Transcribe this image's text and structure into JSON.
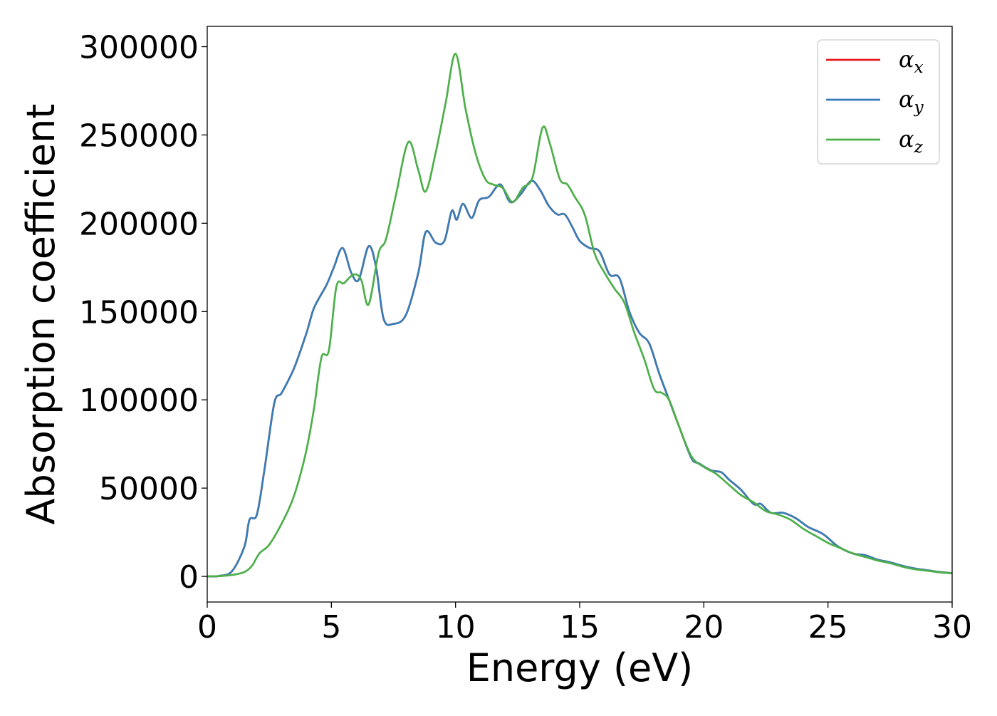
{
  "chart_data": {
    "type": "line",
    "xlabel": "Energy (eV)",
    "ylabel": "Absorption coefficient",
    "xlim": [
      0,
      30
    ],
    "ylim": [
      -14500,
      311500
    ],
    "x_ticks": [
      0,
      5,
      10,
      15,
      20,
      25,
      30
    ],
    "y_ticks": [
      0,
      50000,
      100000,
      150000,
      200000,
      250000,
      300000
    ],
    "x_tick_labels": [
      "0",
      "5",
      "10",
      "15",
      "20",
      "25",
      "30"
    ],
    "y_tick_labels": [
      "0",
      "50000",
      "100000",
      "150000",
      "200000",
      "250000",
      "300000"
    ],
    "grid": false,
    "legend_position": "top-right",
    "series": [
      {
        "name": "αx",
        "symbol": "α",
        "subscript": "x",
        "color": "#e41a1c",
        "x": [
          0,
          0.5,
          1.0,
          1.5,
          1.7,
          2.0,
          2.3,
          2.7,
          3.0,
          3.5,
          4.0,
          4.3,
          4.8,
          5.1,
          5.45,
          5.8,
          6.1,
          6.5,
          6.8,
          7.1,
          7.5,
          8.0,
          8.5,
          8.8,
          9.2,
          9.55,
          9.85,
          10.05,
          10.3,
          10.65,
          10.95,
          11.35,
          11.8,
          12.2,
          12.6,
          13.05,
          13.4,
          13.75,
          14.1,
          14.4,
          14.7,
          15.0,
          15.4,
          15.8,
          16.2,
          16.6,
          17.0,
          17.4,
          17.8,
          18.2,
          18.6,
          19.0,
          19.5,
          19.8,
          20.3,
          20.7,
          21.0,
          21.5,
          22.0,
          22.3,
          22.7,
          23.2,
          23.7,
          24.2,
          24.8,
          25.4,
          26.0,
          26.5,
          27.0,
          27.5,
          28.0,
          28.5,
          29.0,
          29.5,
          30.0
        ],
        "y": [
          0,
          300,
          3000,
          17000,
          32000,
          35000,
          60000,
          98000,
          104000,
          118000,
          138000,
          152000,
          165000,
          175000,
          186000,
          172000,
          168000,
          187000,
          175000,
          146000,
          143000,
          148000,
          172000,
          195000,
          189000,
          190000,
          207000,
          202000,
          211000,
          203000,
          213000,
          215000,
          222000,
          212000,
          216000,
          224000,
          219000,
          210000,
          205000,
          205000,
          198000,
          190000,
          186000,
          184000,
          171000,
          169000,
          150000,
          138000,
          132000,
          115000,
          100000,
          85000,
          67000,
          64000,
          60000,
          59000,
          55000,
          49000,
          41000,
          41000,
          36000,
          36000,
          33000,
          28000,
          24000,
          17000,
          13000,
          12000,
          9500,
          8000,
          6000,
          4500,
          3500,
          2500,
          1800
        ]
      },
      {
        "name": "αy",
        "symbol": "α",
        "subscript": "y",
        "color": "#377eb8",
        "x": [
          0,
          0.5,
          1.0,
          1.5,
          1.7,
          2.0,
          2.3,
          2.7,
          3.0,
          3.5,
          4.0,
          4.3,
          4.8,
          5.1,
          5.45,
          5.8,
          6.1,
          6.5,
          6.8,
          7.1,
          7.5,
          8.0,
          8.5,
          8.8,
          9.2,
          9.55,
          9.85,
          10.05,
          10.3,
          10.65,
          10.95,
          11.35,
          11.8,
          12.2,
          12.6,
          13.05,
          13.4,
          13.75,
          14.1,
          14.4,
          14.7,
          15.0,
          15.4,
          15.8,
          16.2,
          16.6,
          17.0,
          17.4,
          17.8,
          18.2,
          18.6,
          19.0,
          19.5,
          19.8,
          20.3,
          20.7,
          21.0,
          21.5,
          22.0,
          22.3,
          22.7,
          23.2,
          23.7,
          24.2,
          24.8,
          25.4,
          26.0,
          26.5,
          27.0,
          27.5,
          28.0,
          28.5,
          29.0,
          29.5,
          30.0
        ],
        "y": [
          0,
          300,
          3000,
          17000,
          32000,
          35000,
          60000,
          98000,
          104000,
          118000,
          138000,
          152000,
          165000,
          175000,
          186000,
          172000,
          168000,
          187000,
          175000,
          146000,
          143000,
          148000,
          172000,
          195000,
          189000,
          190000,
          207000,
          202000,
          211000,
          203000,
          213000,
          215000,
          222000,
          212000,
          216000,
          224000,
          219000,
          210000,
          205000,
          205000,
          198000,
          190000,
          186000,
          184000,
          171000,
          169000,
          150000,
          138000,
          132000,
          115000,
          100000,
          85000,
          67000,
          64000,
          60000,
          59000,
          55000,
          49000,
          41000,
          41000,
          36000,
          36000,
          33000,
          28000,
          24000,
          17000,
          13000,
          12000,
          9500,
          8000,
          6000,
          4500,
          3500,
          2500,
          1800
        ]
      },
      {
        "name": "αz",
        "symbol": "α",
        "subscript": "z",
        "color": "#4daf4a",
        "x": [
          0,
          0.5,
          1.0,
          1.5,
          1.8,
          2.1,
          2.5,
          3.0,
          3.4,
          3.7,
          4.0,
          4.3,
          4.6,
          4.9,
          5.2,
          5.5,
          5.9,
          6.2,
          6.5,
          6.9,
          7.2,
          7.6,
          8.1,
          8.5,
          8.8,
          9.2,
          9.6,
          10.0,
          10.4,
          10.8,
          11.2,
          11.5,
          11.9,
          12.3,
          12.7,
          13.1,
          13.5,
          13.8,
          14.2,
          14.5,
          14.8,
          15.2,
          15.6,
          16.0,
          16.4,
          16.8,
          17.2,
          17.6,
          18.0,
          18.3,
          18.6,
          19.0,
          19.5,
          20.0,
          20.5,
          21.0,
          21.5,
          22.0,
          22.5,
          23.0,
          23.5,
          24.0,
          24.5,
          25.0,
          25.5,
          26.0,
          26.5,
          27.0,
          27.5,
          28.0,
          28.5,
          29.0,
          29.5,
          30.0
        ],
        "y": [
          0,
          200,
          800,
          2500,
          6000,
          13000,
          18000,
          30000,
          42000,
          55000,
          72000,
          95000,
          124000,
          128000,
          164000,
          166000,
          171000,
          168000,
          154000,
          183000,
          191000,
          216000,
          246000,
          230000,
          218000,
          240000,
          268000,
          296000,
          265000,
          240000,
          225000,
          222000,
          220000,
          212000,
          220000,
          226000,
          254000,
          245000,
          225000,
          222000,
          215000,
          205000,
          183000,
          172000,
          163000,
          155000,
          138000,
          123000,
          106000,
          104000,
          100000,
          85000,
          68000,
          62000,
          58000,
          52000,
          46000,
          42000,
          37000,
          35000,
          32000,
          27000,
          23000,
          19000,
          16000,
          13000,
          11000,
          9000,
          7500,
          5500,
          4000,
          3200,
          2300,
          1700
        ]
      }
    ]
  }
}
